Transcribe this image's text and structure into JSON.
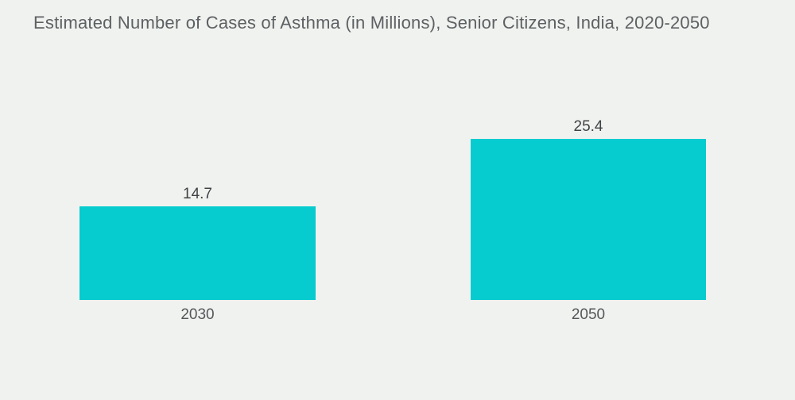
{
  "title": "Estimated Number of Cases of Asthma (in Millions), Senior Citizens, India, 2020-2050",
  "colors": {
    "bar": "#06CBCF",
    "title_text": "#5E6164",
    "value_label_text": "#3F4346",
    "category_label_text": "#54575A",
    "background": "#F0F2EF"
  },
  "chart_data": {
    "type": "bar",
    "categories": [
      "2030",
      "2050"
    ],
    "values": [
      14.7,
      25.4
    ],
    "value_labels": [
      "14.7",
      "25.4"
    ],
    "title": "Estimated Number of Cases of Asthma (in Millions), Senior Citizens, India, 2020-2050",
    "xlabel": "",
    "ylabel": "",
    "ylim": [
      0,
      30
    ],
    "grid": false,
    "legend": false,
    "axes_visible": false,
    "bar_orientation": "vertical"
  }
}
